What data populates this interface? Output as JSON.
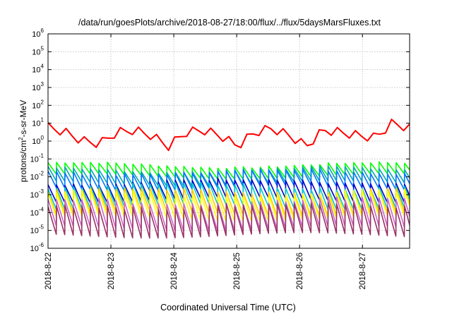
{
  "chart_data": {
    "type": "line",
    "title": "/data/run/goesPlots/archive/2018-08-27/18:00/flux/../flux/5daysMarsFluxes.txt",
    "xlabel": "Coordinated Universal Time (UTC)",
    "ylabel": "protons/cm²-s-sr-MeV",
    "ylabel_parts": {
      "main": "protons/cm",
      "sup": "2",
      "rest": "-s-sr-MeV"
    },
    "y_scale": "log",
    "ylim": [
      1e-06,
      1000000.0
    ],
    "y_ticks": [
      {
        "exp": "-6",
        "value": 1e-06
      },
      {
        "exp": "-5",
        "value": 1e-05
      },
      {
        "exp": "-4",
        "value": 0.0001
      },
      {
        "exp": "-3",
        "value": 0.001
      },
      {
        "exp": "-2",
        "value": 0.01
      },
      {
        "exp": "-1",
        "value": 0.1
      },
      {
        "exp": "0",
        "value": 1
      },
      {
        "exp": "1",
        "value": 10
      },
      {
        "exp": "2",
        "value": 100
      },
      {
        "exp": "3",
        "value": 1000
      },
      {
        "exp": "4",
        "value": 10000
      },
      {
        "exp": "5",
        "value": 100000
      },
      {
        "exp": "6",
        "value": 1000000
      }
    ],
    "y_tick_base": "10",
    "x_range": [
      "2018-8-22 00:00",
      "2018-8-27 18:00"
    ],
    "x_ticks": [
      "2018-8-22",
      "2018-8-23",
      "2018-8-24",
      "2018-8-25",
      "2018-8-26",
      "2018-8-27"
    ],
    "grid": true,
    "legend": "none",
    "series": [
      {
        "color": "#ff0000",
        "baseline": 1.5,
        "trend": "slow ramps with decays",
        "values_approx": [
          6.0,
          3.0,
          1.0,
          0.7,
          3.0,
          4.0,
          2.0,
          0.5,
          3.0,
          4.0,
          2.0,
          0.5,
          3.0,
          5.0,
          2.0,
          0.5,
          4.0,
          3.0,
          2.0,
          1.5,
          10.0,
          5.0
        ]
      },
      {
        "color": "#00ff00",
        "baseline": 0.025,
        "trend": "sawtooth"
      },
      {
        "color": "#00aaaa",
        "baseline": 0.012,
        "trend": "sawtooth"
      },
      {
        "color": "#0077ff",
        "baseline": 0.008,
        "trend": "sawtooth"
      },
      {
        "color": "#0000cc",
        "baseline": 0.002,
        "trend": "sawtooth"
      },
      {
        "color": "#00cccc",
        "baseline": 0.001,
        "trend": "sawtooth"
      },
      {
        "color": "#ffcc00",
        "baseline": 0.0005,
        "trend": "sawtooth"
      },
      {
        "color": "#ffff00",
        "baseline": 0.0003,
        "trend": "sawtooth"
      },
      {
        "color": "#cc66cc",
        "baseline": 0.0001,
        "trend": "sawtooth"
      },
      {
        "color": "#993366",
        "baseline": 5e-05,
        "trend": "sawtooth"
      }
    ]
  }
}
